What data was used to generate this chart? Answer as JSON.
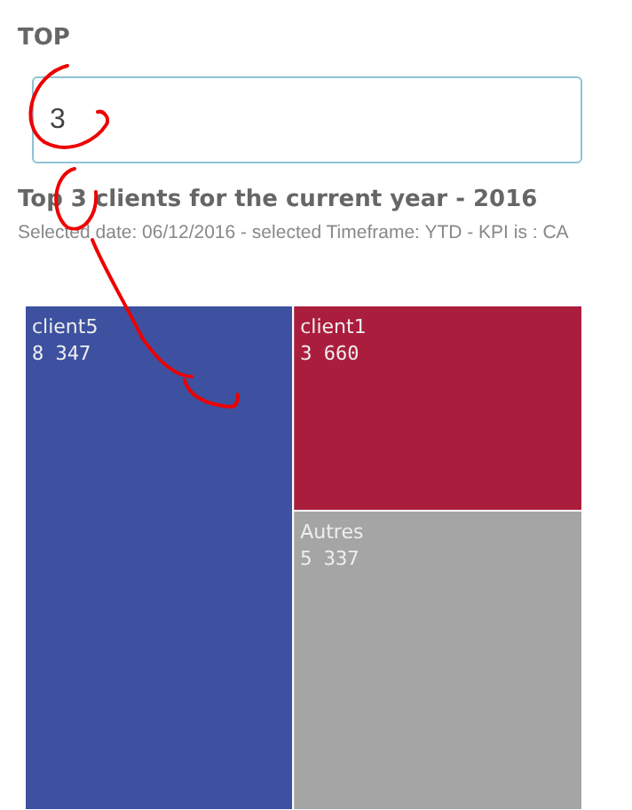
{
  "chart_data": {
    "type": "other",
    "title": "Top 3 clients for the current year - 2016",
    "subtitle": "Selected date: 06/12/2016 - selected Timeframe: YTD - KPI is : CA",
    "annotations": [
      "TOP",
      "3"
    ],
    "categories": [
      "client5",
      "client1",
      "Autres"
    ],
    "values": [
      8347,
      3660,
      5337
    ],
    "value_labels": [
      "8 347",
      "3 660",
      "5 337"
    ],
    "colors": [
      "#3d51a0",
      "#ab1d3d",
      "#a5a5a5"
    ]
  }
}
